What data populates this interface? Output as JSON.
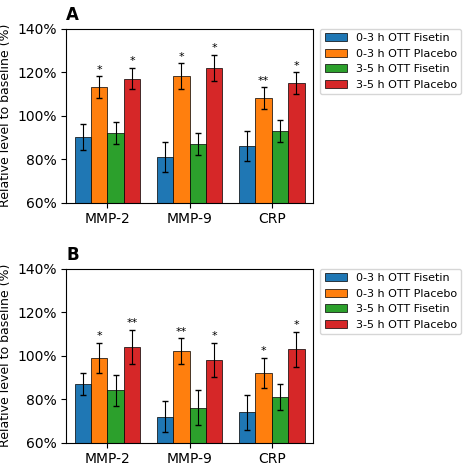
{
  "chart_data": [
    {
      "type": "bar",
      "title": "A",
      "categories": [
        "MMP-2",
        "MMP-9",
        "CRP"
      ],
      "series": [
        {
          "name": "0-3 h OTT Fisetin",
          "values": [
            90,
            81,
            86
          ],
          "errors": [
            6,
            7,
            7
          ]
        },
        {
          "name": "0-3 h OTT Placebo",
          "values": [
            113,
            118,
            108
          ],
          "errors": [
            5,
            6,
            5
          ],
          "significance": [
            "*",
            "*",
            "**"
          ]
        },
        {
          "name": "3-5 h OTT Fisetin",
          "values": [
            92,
            87,
            93
          ],
          "errors": [
            5,
            5,
            5
          ]
        },
        {
          "name": "3-5 h OTT Placebo",
          "values": [
            117,
            122,
            115
          ],
          "errors": [
            5,
            6,
            5
          ],
          "significance": [
            "*",
            "*",
            "*"
          ]
        }
      ],
      "ylabel": "Relative level to baseline (%)",
      "ylim": [
        60,
        140
      ],
      "yticks": [
        {
          "value": 60,
          "label": "60%"
        },
        {
          "value": 80,
          "label": "80%"
        },
        {
          "value": 100,
          "label": "100%"
        },
        {
          "value": 120,
          "label": "120%"
        },
        {
          "value": 140,
          "label": "140%"
        }
      ],
      "legend": "upper left"
    },
    {
      "type": "bar",
      "title": "B",
      "categories": [
        "MMP-2",
        "MMP-9",
        "CRP"
      ],
      "series": [
        {
          "name": "0-3 h OTT Fisetin",
          "values": [
            87,
            72,
            74
          ],
          "errors": [
            5,
            7,
            8
          ]
        },
        {
          "name": "0-3 h OTT Placebo",
          "values": [
            99,
            102,
            92
          ],
          "errors": [
            7,
            6,
            7
          ],
          "significance": [
            "*",
            "**",
            "*"
          ]
        },
        {
          "name": "3-5 h OTT Fisetin",
          "values": [
            84,
            76,
            81
          ],
          "errors": [
            7,
            8,
            6
          ]
        },
        {
          "name": "3-5 h OTT Placebo",
          "values": [
            104,
            98,
            103
          ],
          "errors": [
            8,
            8,
            8
          ],
          "significance": [
            "**",
            "*",
            "*"
          ]
        }
      ],
      "ylabel": "Relative level to baseline (%)",
      "ylim": [
        60,
        140
      ],
      "yticks": [
        {
          "value": 60,
          "label": "60%"
        },
        {
          "value": 80,
          "label": "80%"
        },
        {
          "value": 100,
          "label": "100%"
        },
        {
          "value": 120,
          "label": "120%"
        },
        {
          "value": 140,
          "label": "140%"
        }
      ],
      "legend": "upper left"
    }
  ]
}
